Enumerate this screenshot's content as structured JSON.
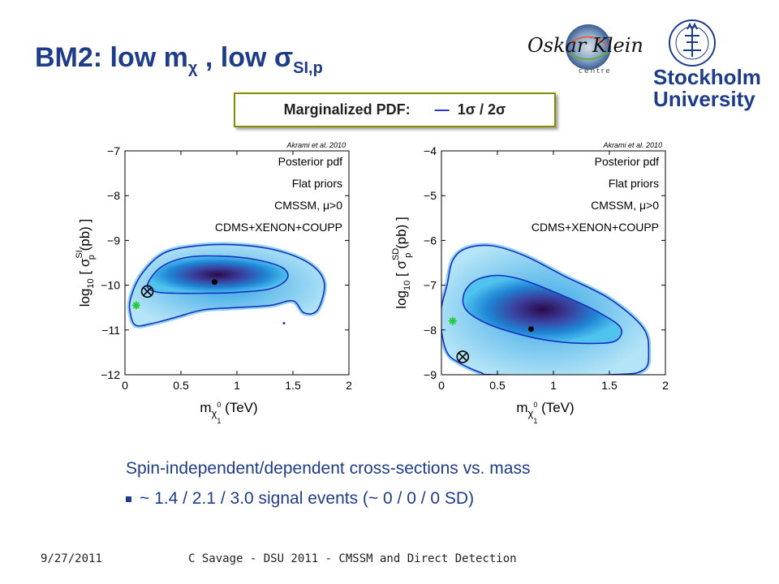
{
  "slide": {
    "title_main": "BM2:  low m",
    "title_chi": "χ",
    "title_mid": " , low σ",
    "title_sub": "SI,p",
    "legend_label": "Marginalized PDF:",
    "legend_line": "—",
    "legend_value": "1σ / 2σ",
    "logo_signature": "Oskar Klein",
    "logo_centre": "centre",
    "university_line1": "Stockholm",
    "university_line2": "University",
    "caption": "Spin-independent/dependent cross-sections vs. mass",
    "bullet": "~ 1.4 / 2.1 / 3.0 signal events (~ 0 / 0 / 0 SD)",
    "footer_date": "9/27/2011",
    "footer_text": "C Savage - DSU 2011 - CMSSM and Direct Detection",
    "colors": {
      "title": "#1f3c88",
      "contour_line": "#1a2fbf",
      "legend_border": "#8a8a00"
    }
  },
  "chart_data": [
    {
      "type": "heatmap",
      "citation": "Akrami et al. 2010",
      "annotations": [
        "Posterior pdf",
        "Flat priors",
        "CMSSM, μ>0",
        "CDMS+XENON+COUPP"
      ],
      "xlabel": "m",
      "xlabel_sub": "χ",
      "xlabel_supsub": "0",
      "xlabel_subsub": "1",
      "xlabel_unit": "(TeV)",
      "ylabel_pre": "log",
      "ylabel_pre_sub": "10",
      "ylabel_bracket": "[ σ",
      "ylabel_sup": "SI",
      "ylabel_sub": "p",
      "ylabel_post": "(pb) ]",
      "xlim": [
        0,
        2
      ],
      "ylim": [
        -12,
        -7
      ],
      "xticks": [
        0,
        0.5,
        1,
        1.5,
        2
      ],
      "xticklabels": [
        "0",
        "0.5",
        "1",
        "1.5",
        "2"
      ],
      "yticks": [
        -12,
        -11,
        -10,
        -9,
        -8,
        -7
      ],
      "yticklabels": [
        "−12",
        "−11",
        "−10",
        "−9",
        "−8",
        "−7"
      ],
      "mean_point": {
        "x": 0.8,
        "y": -9.93
      },
      "bestfit_point": {
        "x": 0.2,
        "y": -10.14
      },
      "benchmark_point": {
        "x": 0.1,
        "y": -10.45
      },
      "stray_point": {
        "x": 1.42,
        "y": -10.85
      },
      "contour_1sigma": [
        [
          0.2,
          -10.0
        ],
        [
          0.32,
          -9.6
        ],
        [
          0.55,
          -9.38
        ],
        [
          0.85,
          -9.35
        ],
        [
          1.15,
          -9.42
        ],
        [
          1.4,
          -9.6
        ],
        [
          1.45,
          -9.85
        ],
        [
          1.3,
          -10.08
        ],
        [
          1.0,
          -10.16
        ],
        [
          0.7,
          -10.18
        ],
        [
          0.45,
          -10.18
        ],
        [
          0.28,
          -10.15
        ]
      ],
      "contour_2sigma": [
        [
          0.05,
          -10.3
        ],
        [
          0.15,
          -9.75
        ],
        [
          0.35,
          -9.28
        ],
        [
          0.65,
          -9.12
        ],
        [
          1.0,
          -9.1
        ],
        [
          1.35,
          -9.22
        ],
        [
          1.65,
          -9.52
        ],
        [
          1.78,
          -9.95
        ],
        [
          1.72,
          -10.55
        ],
        [
          1.6,
          -10.62
        ],
        [
          1.5,
          -10.35
        ],
        [
          1.3,
          -10.45
        ],
        [
          1.0,
          -10.5
        ],
        [
          0.7,
          -10.55
        ],
        [
          0.45,
          -10.72
        ],
        [
          0.25,
          -10.85
        ],
        [
          0.1,
          -10.9
        ],
        [
          0.05,
          -10.65
        ]
      ]
    },
    {
      "type": "heatmap",
      "citation": "Akrami et al. 2010",
      "annotations": [
        "Posterior pdf",
        "Flat priors",
        "CMSSM, μ>0",
        "CDMS+XENON+COUPP"
      ],
      "xlabel": "m",
      "xlabel_sub": "χ",
      "xlabel_supsub": "0",
      "xlabel_subsub": "1",
      "xlabel_unit": "(TeV)",
      "ylabel_pre": "log",
      "ylabel_pre_sub": "10",
      "ylabel_bracket": "[ σ",
      "ylabel_sup": "SD",
      "ylabel_sub": "p",
      "ylabel_post": "(pb) ]",
      "xlim": [
        0,
        2
      ],
      "ylim": [
        -9,
        -4
      ],
      "xticks": [
        0,
        0.5,
        1,
        1.5,
        2
      ],
      "xticklabels": [
        "0",
        "0.5",
        "1",
        "1.5",
        "2"
      ],
      "yticks": [
        -9,
        -8,
        -7,
        -6,
        -5,
        -4
      ],
      "yticklabels": [
        "−9",
        "−8",
        "−7",
        "−6",
        "−5",
        "−4"
      ],
      "mean_point": {
        "x": 0.8,
        "y": -7.98
      },
      "bestfit_point": {
        "x": 0.19,
        "y": -8.6
      },
      "benchmark_point": {
        "x": 0.1,
        "y": -7.8
      },
      "contour_1sigma": [
        [
          0.2,
          -7.2
        ],
        [
          0.3,
          -6.9
        ],
        [
          0.5,
          -6.78
        ],
        [
          0.75,
          -6.9
        ],
        [
          1.1,
          -7.25
        ],
        [
          1.4,
          -7.6
        ],
        [
          1.6,
          -7.95
        ],
        [
          1.55,
          -8.25
        ],
        [
          1.3,
          -8.3
        ],
        [
          1.0,
          -8.25
        ],
        [
          0.7,
          -8.1
        ],
        [
          0.4,
          -7.85
        ],
        [
          0.22,
          -7.55
        ]
      ],
      "contour_2sigma": [
        [
          0.05,
          -7.0
        ],
        [
          0.1,
          -6.45
        ],
        [
          0.22,
          -6.18
        ],
        [
          0.45,
          -6.12
        ],
        [
          0.75,
          -6.35
        ],
        [
          1.1,
          -6.8
        ],
        [
          1.5,
          -7.3
        ],
        [
          1.8,
          -7.95
        ],
        [
          1.85,
          -8.5
        ],
        [
          1.8,
          -8.9
        ],
        [
          1.5,
          -9.0
        ],
        [
          0.5,
          -9.0
        ],
        [
          0.35,
          -8.95
        ],
        [
          0.15,
          -8.72
        ],
        [
          0.05,
          -8.5
        ],
        [
          0.0,
          -8.0
        ],
        [
          0.0,
          -7.5
        ]
      ]
    }
  ]
}
